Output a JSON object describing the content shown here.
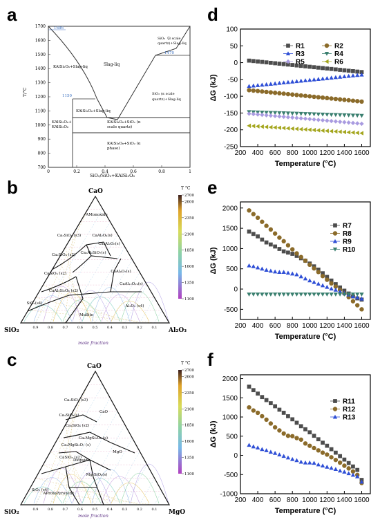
{
  "panels": {
    "a": "a",
    "b": "b",
    "c": "c",
    "d": "d",
    "e": "e",
    "f": "f"
  },
  "phase_diagram": {
    "y_axis_label": "T/°C",
    "x_axis_label": "SiO₂/SiO₂+KAlSi₂O₆",
    "y_ticks": [
      "700",
      "800",
      "900",
      "1000",
      "1100",
      "1200",
      "1300",
      "1400",
      "1500",
      "1600",
      "1700"
    ],
    "x_ticks": [
      "0",
      "0.2",
      "0.4",
      "0.6",
      "0.8",
      "1"
    ],
    "labels": {
      "t1686": "1686",
      "t1470": "1470",
      "t1150": "1150",
      "slag": "Slag-liq",
      "kals_slag": "KAlSi₂O₆+Slag-liq",
      "sio2_beta": [
        "SiO₂（β scale",
        "quartz)+Slag-liq"
      ],
      "sio2_alpha": [
        "SiO₂ (α scale",
        "quartz)+Slag-liq"
      ],
      "kals3_slag": "KAlSi₃O₈+Slag-liq",
      "kals_kals3": [
        "KAlSi₂O₆+",
        "KAlSi₃O₈"
      ],
      "kals3_sio2_alpha": [
        "KAlSi₃O₈+SiO₂ (α",
        "scale quartz)"
      ],
      "kals3_sio2_phase": [
        "KAlSi₃O₈+SiO₂ (α",
        "phase)"
      ]
    }
  },
  "ternary_b": {
    "title_top": "CaO",
    "left": "SiO₂",
    "right": "Al₂O₃",
    "caption": "mole fraction",
    "colorbar_title": "T °C",
    "colorbar_ticks": [
      "2700",
      "2600",
      "2350",
      "2100",
      "1850",
      "1600",
      "1350",
      "1100"
    ],
    "fields": [
      "AMonoxide",
      "Ca₃SiO₅ (s3)",
      "CaAl₂O₄(s)",
      "Ca₃Al₂O₆(s)",
      "Ca₂SiO₄ (s2)",
      "Ca₂Al₂SiO₇(s)",
      "CaAl₄O₇(s)",
      "CaSiO₃ (s2)",
      "CaAl₂Si₂O₈ (s2)",
      "CaAl₁₂O₁₉(s)",
      "SiO₂(s4)",
      "Mullite",
      "Al₂O₃ (s4)"
    ],
    "bottom_ticks": [
      "0.9",
      "0.8",
      "0.7",
      "0.6",
      "0.5",
      "0.4",
      "0.3",
      "0.2",
      "0.1"
    ]
  },
  "ternary_c": {
    "title_top": "CaO",
    "left": "SiO₂",
    "right": "MgO",
    "caption": "mole fraction",
    "colorbar_title": "T °C",
    "colorbar_ticks": [
      "2700",
      "2600",
      "2350",
      "2100",
      "1850",
      "1600",
      "1350",
      "1100"
    ],
    "fields": [
      "Ca₃SiO₅ (s3)",
      "Ca₂SiO₄(s)",
      "CaO",
      "Ca₂SiO₄ (s2)",
      "Ca₃MgSi₂O₈ (s)",
      "Ca₂MgSi₂O₇ (s)",
      "CaSiO₃ (s2)",
      "MgO",
      "Diopside",
      "Mg₂SiO₄(s)",
      "SiO₂ (s4)",
      "AProtoPyroxene"
    ],
    "bottom_ticks": [
      "0.9",
      "0.8",
      "0.7",
      "0.6",
      "0.5",
      "0.4",
      "0.3",
      "0.2",
      "0.1"
    ]
  },
  "chart_data": [
    {
      "panel": "d",
      "type": "scatter",
      "xlabel": "Temperature (°C)",
      "ylabel": "ΔG (kJ)",
      "xlim": [
        200,
        1700
      ],
      "ylim": [
        -250,
        100
      ],
      "xticks": [
        200,
        400,
        600,
        800,
        1000,
        1200,
        1400,
        1600
      ],
      "yticks": [
        100,
        50,
        0,
        -50,
        -100,
        -150,
        -200,
        -250
      ],
      "x": [
        300,
        350,
        400,
        450,
        500,
        550,
        600,
        650,
        700,
        750,
        800,
        850,
        900,
        950,
        1000,
        1050,
        1100,
        1150,
        1200,
        1250,
        1300,
        1350,
        1400,
        1450,
        1500,
        1550,
        1600
      ],
      "series": [
        {
          "name": "R1",
          "color": "#4d4d4d",
          "marker": "square",
          "start": 6,
          "end": -28
        },
        {
          "name": "R2",
          "color": "#8b6b2a",
          "marker": "circle",
          "start": -82,
          "end": -116
        },
        {
          "name": "R3",
          "color": "#2f4fd6",
          "marker": "triangle",
          "start": -70,
          "end": -36
        },
        {
          "name": "R4",
          "color": "#3a7f6f",
          "marker": "tri-down",
          "start": -147,
          "end": -158
        },
        {
          "name": "R5",
          "color": "#a99be0",
          "marker": "diamond",
          "start": -152,
          "end": -182
        },
        {
          "name": "R6",
          "color": "#a4a61e",
          "marker": "tri-left",
          "start": -188,
          "end": -210
        }
      ]
    },
    {
      "panel": "e",
      "type": "scatter",
      "xlabel": "Temperature (°C)",
      "ylabel": "ΔG (kJ)",
      "xlim": [
        200,
        1700
      ],
      "ylim": [
        -750,
        2150
      ],
      "xticks": [
        200,
        400,
        600,
        800,
        1000,
        1200,
        1400,
        1600
      ],
      "yticks": [
        2000,
        1500,
        1000,
        500,
        0,
        -500
      ],
      "x": [
        300,
        350,
        400,
        450,
        500,
        550,
        600,
        650,
        700,
        750,
        800,
        850,
        900,
        950,
        1000,
        1050,
        1100,
        1150,
        1200,
        1250,
        1300,
        1350,
        1400,
        1450,
        1500,
        1550,
        1600
      ],
      "series": [
        {
          "name": "R7",
          "color": "#4d4d4d",
          "marker": "square",
          "values": [
            1420,
            1360,
            1300,
            1220,
            1150,
            1100,
            1050,
            990,
            930,
            900,
            870,
            820,
            760,
            700,
            630,
            560,
            480,
            390,
            300,
            210,
            120,
            40,
            -40,
            -110,
            -180,
            -230,
            -260
          ]
        },
        {
          "name": "R8",
          "color": "#8b6b2a",
          "marker": "circle",
          "values": [
            1940,
            1850,
            1760,
            1660,
            1560,
            1470,
            1370,
            1270,
            1180,
            1080,
            980,
            880,
            790,
            700,
            600,
            510,
            420,
            320,
            230,
            140,
            60,
            -20,
            -110,
            -200,
            -300,
            -400,
            -500
          ]
        },
        {
          "name": "R9",
          "color": "#2f4fd6",
          "marker": "triangle",
          "values": [
            580,
            560,
            530,
            500,
            470,
            450,
            430,
            420,
            420,
            400,
            380,
            360,
            310,
            260,
            210,
            170,
            130,
            90,
            50,
            10,
            -20,
            -60,
            -100,
            -140,
            -180,
            -210,
            -240
          ]
        },
        {
          "name": "R10",
          "color": "#3a7f6f",
          "marker": "tri-down",
          "values": [
            -130,
            -130,
            -130,
            -130,
            -130,
            -130,
            -130,
            -130,
            -130,
            -130,
            -130,
            -130,
            -130,
            -130,
            -130,
            -130,
            -130,
            -130,
            -130,
            -130,
            -130,
            -130,
            -130,
            -130,
            -130,
            -130,
            -130
          ]
        }
      ]
    },
    {
      "panel": "f",
      "type": "scatter",
      "xlabel": "Temperature (°C)",
      "ylabel": "ΔG (kJ)",
      "xlim": [
        200,
        1700
      ],
      "ylim": [
        -1000,
        2100
      ],
      "xticks": [
        200,
        400,
        600,
        800,
        1000,
        1200,
        1400,
        1600
      ],
      "yticks": [
        2000,
        1500,
        1000,
        500,
        0,
        -500,
        -1000
      ],
      "x": [
        300,
        350,
        400,
        450,
        500,
        550,
        600,
        650,
        700,
        750,
        800,
        850,
        900,
        950,
        1000,
        1050,
        1100,
        1150,
        1200,
        1250,
        1300,
        1350,
        1400,
        1450,
        1500,
        1550,
        1600
      ],
      "series": [
        {
          "name": "R11",
          "color": "#4d4d4d",
          "marker": "square",
          "values": [
            1790,
            1700,
            1610,
            1520,
            1440,
            1360,
            1280,
            1190,
            1110,
            1020,
            940,
            850,
            760,
            680,
            600,
            510,
            420,
            330,
            250,
            160,
            70,
            -20,
            -110,
            -200,
            -290,
            -380,
            -640
          ]
        },
        {
          "name": "R12",
          "color": "#8b6b2a",
          "marker": "circle",
          "values": [
            1250,
            1170,
            1110,
            1020,
            930,
            830,
            730,
            650,
            570,
            510,
            500,
            450,
            410,
            310,
            250,
            190,
            130,
            70,
            20,
            -50,
            -120,
            -190,
            -270,
            -340,
            -420,
            -510,
            -720
          ]
        },
        {
          "name": "R13",
          "color": "#2f4fd6",
          "marker": "triangle",
          "values": [
            270,
            230,
            200,
            160,
            130,
            90,
            60,
            20,
            -20,
            -60,
            -100,
            -130,
            -170,
            -190,
            -190,
            -200,
            -240,
            -270,
            -300,
            -330,
            -360,
            -400,
            -430,
            -470,
            -510,
            -550,
            -690
          ]
        }
      ]
    }
  ]
}
